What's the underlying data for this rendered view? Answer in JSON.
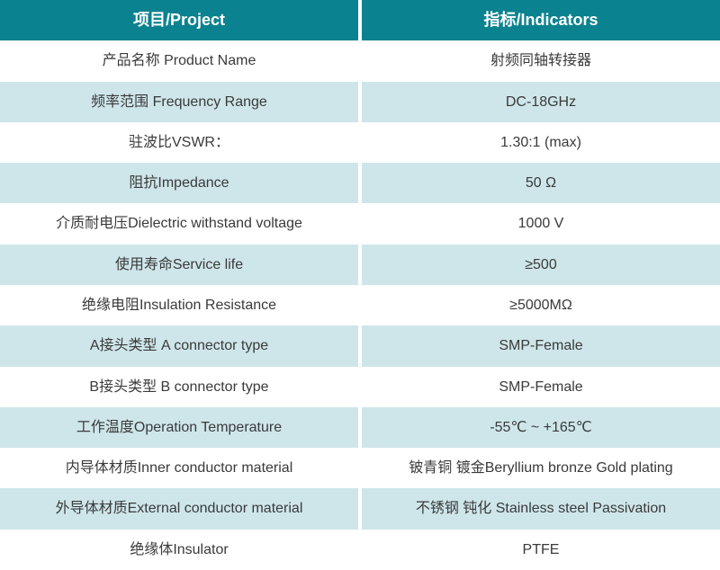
{
  "colors": {
    "header_bg": "#0b828f",
    "header_text": "#ffffff",
    "alt_row_bg": "#cee6ea",
    "row_bg": "#ffffff",
    "body_text": "#3a3a3a",
    "divider": "#ffffff"
  },
  "table": {
    "header": {
      "project": "项目/Project",
      "indicator": "指标/Indicators"
    },
    "rows": [
      {
        "project": "产品名称 Product Name",
        "indicator": "射频同轴转接器"
      },
      {
        "project": "频率范围 Frequency Range",
        "indicator": "DC-18GHz"
      },
      {
        "project": "驻波比VSWR：",
        "indicator": "1.30:1 (max)"
      },
      {
        "project": "阻抗Impedance",
        "indicator": "50 Ω"
      },
      {
        "project": "介质耐电压Dielectric withstand voltage",
        "indicator": "1000 V"
      },
      {
        "project": "使用寿命Service life",
        "indicator": "≥500"
      },
      {
        "project": "绝缘电阻Insulation Resistance",
        "indicator": "≥5000MΩ"
      },
      {
        "project": "A接头类型 A connector type",
        "indicator": "SMP-Female"
      },
      {
        "project": "B接头类型 B connector type",
        "indicator": "SMP-Female"
      },
      {
        "project": "工作温度Operation Temperature",
        "indicator": "-55℃ ~ +165℃"
      },
      {
        "project": "内导体材质Inner conductor material",
        "indicator": "铍青铜 镀金Beryllium bronze Gold plating"
      },
      {
        "project": "外导体材质External conductor material",
        "indicator": "不锈钢 钝化 Stainless steel Passivation"
      },
      {
        "project": "绝缘体Insulator",
        "indicator": "PTFE"
      }
    ]
  }
}
